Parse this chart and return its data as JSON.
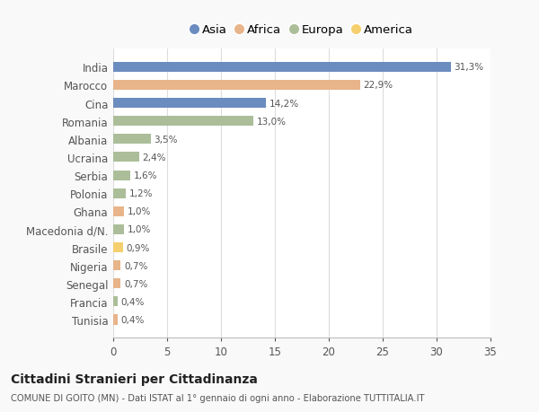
{
  "categories": [
    "India",
    "Marocco",
    "Cina",
    "Romania",
    "Albania",
    "Ucraina",
    "Serbia",
    "Polonia",
    "Ghana",
    "Macedonia d/N.",
    "Brasile",
    "Nigeria",
    "Senegal",
    "Francia",
    "Tunisia"
  ],
  "values": [
    31.3,
    22.9,
    14.2,
    13.0,
    3.5,
    2.4,
    1.6,
    1.2,
    1.0,
    1.0,
    0.9,
    0.7,
    0.7,
    0.4,
    0.4
  ],
  "labels": [
    "31,3%",
    "22,9%",
    "14,2%",
    "13,0%",
    "3,5%",
    "2,4%",
    "1,6%",
    "1,2%",
    "1,0%",
    "1,0%",
    "0,9%",
    "0,7%",
    "0,7%",
    "0,4%",
    "0,4%"
  ],
  "colors": [
    "#6B8CBE",
    "#E8B48A",
    "#6B8CBE",
    "#ABBE99",
    "#ABBE99",
    "#ABBE99",
    "#ABBE99",
    "#ABBE99",
    "#E8B48A",
    "#ABBE99",
    "#F5CF6E",
    "#E8B48A",
    "#E8B48A",
    "#ABBE99",
    "#E8B48A"
  ],
  "legend_labels": [
    "Asia",
    "Africa",
    "Europa",
    "America"
  ],
  "legend_colors": [
    "#6B8CBE",
    "#E8B48A",
    "#ABBE99",
    "#F5CF6E"
  ],
  "xlim": [
    0,
    35
  ],
  "xticks": [
    0,
    5,
    10,
    15,
    20,
    25,
    30,
    35
  ],
  "title1": "Cittadini Stranieri per Cittadinanza",
  "title2": "COMUNE DI GOITO (MN) - Dati ISTAT al 1° gennaio di ogni anno - Elaborazione TUTTITALIA.IT",
  "bg_color": "#f9f9f9",
  "plot_bg_color": "#ffffff"
}
